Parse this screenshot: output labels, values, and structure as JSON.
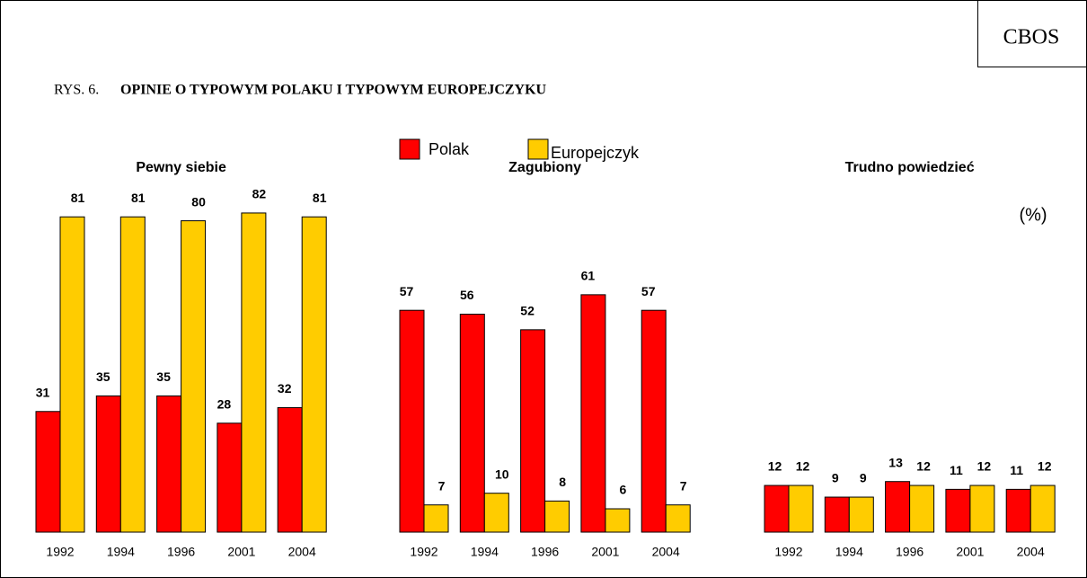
{
  "header": {
    "source": "CBOS"
  },
  "chart_data": {
    "type": "bar",
    "figure_label": "RYS. 6.",
    "title": "OPINIE O TYPOWYM POLAKU I TYPOWYM EUROPEJCZYKU",
    "unit_label": "(%)",
    "panels": [
      "Pewny siebie",
      "Zagubiony",
      "Trudno powiedzieć"
    ],
    "categories": [
      "1992",
      "1994",
      "1996",
      "2001",
      "2004"
    ],
    "ylim": [
      0,
      100
    ],
    "series": [
      {
        "name": "Polak",
        "color": "#ff0000",
        "values": [
          [
            31,
            35,
            35,
            28,
            32
          ],
          [
            57,
            56,
            52,
            61,
            57
          ],
          [
            12,
            9,
            13,
            11,
            11
          ]
        ]
      },
      {
        "name": "Europejczyk",
        "color": "#ffcc00",
        "values": [
          [
            81,
            81,
            80,
            82,
            81
          ],
          [
            7,
            10,
            8,
            6,
            7
          ],
          [
            12,
            9,
            12,
            12,
            12
          ]
        ]
      }
    ]
  }
}
